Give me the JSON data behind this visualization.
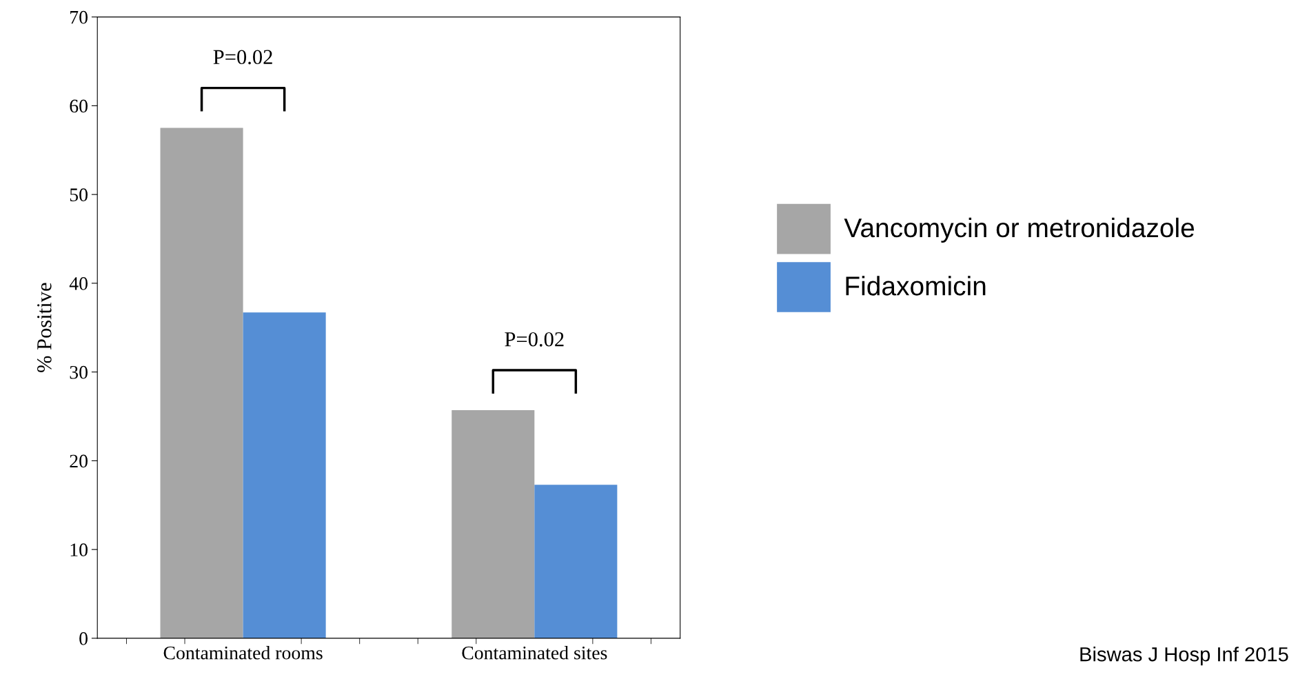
{
  "chart_data": {
    "type": "bar",
    "ylabel": "% Positive",
    "categories": [
      "Contaminated rooms",
      "Contaminated sites"
    ],
    "series": [
      {
        "name": "Vancomycin or metronidazole",
        "color": "#a6a6a6",
        "values": [
          57.5,
          25.7
        ]
      },
      {
        "name": "Fidaxomicin",
        "color": "#558ed5",
        "values": [
          36.7,
          17.3
        ]
      }
    ],
    "ylim": [
      0,
      70
    ],
    "yticks": [
      0,
      10,
      20,
      30,
      40,
      50,
      60,
      70
    ],
    "grid": false,
    "legend": "right",
    "annotations": [
      "P=0.02",
      "P=0.02",
      "Biswas J Hosp Inf 2015"
    ]
  }
}
